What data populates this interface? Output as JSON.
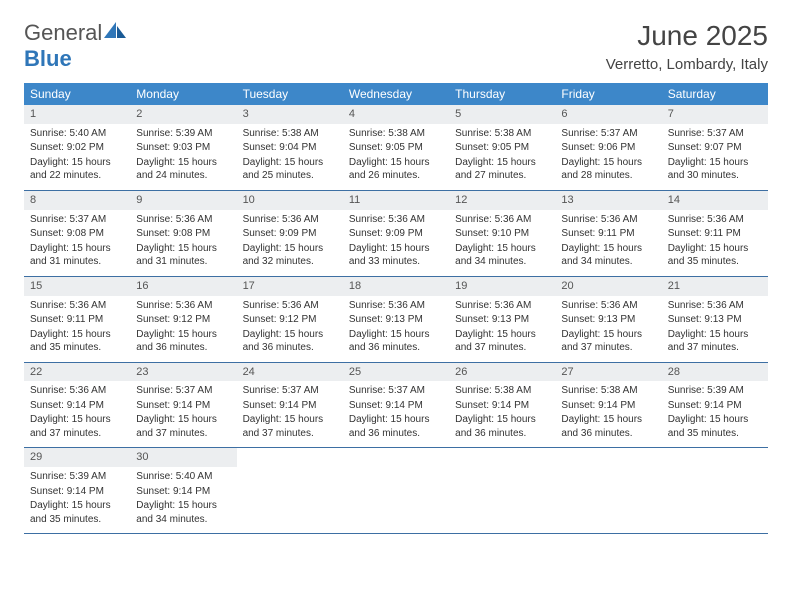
{
  "logo": {
    "word1": "General",
    "word2": "Blue"
  },
  "title": "June 2025",
  "location": "Verretto, Lombardy, Italy",
  "colors": {
    "header_bg": "#3d87c9",
    "header_text": "#ffffff",
    "daynum_bg": "#eceef0",
    "week_border": "#3d6fa3",
    "logo_blue": "#2f76b8"
  },
  "dow": [
    "Sunday",
    "Monday",
    "Tuesday",
    "Wednesday",
    "Thursday",
    "Friday",
    "Saturday"
  ],
  "labels": {
    "sunrise": "Sunrise:",
    "sunset": "Sunset:",
    "daylight": "Daylight:"
  },
  "weeks": [
    [
      {
        "n": 1,
        "sr": "5:40 AM",
        "ss": "9:02 PM",
        "dl": "15 hours and 22 minutes."
      },
      {
        "n": 2,
        "sr": "5:39 AM",
        "ss": "9:03 PM",
        "dl": "15 hours and 24 minutes."
      },
      {
        "n": 3,
        "sr": "5:38 AM",
        "ss": "9:04 PM",
        "dl": "15 hours and 25 minutes."
      },
      {
        "n": 4,
        "sr": "5:38 AM",
        "ss": "9:05 PM",
        "dl": "15 hours and 26 minutes."
      },
      {
        "n": 5,
        "sr": "5:38 AM",
        "ss": "9:05 PM",
        "dl": "15 hours and 27 minutes."
      },
      {
        "n": 6,
        "sr": "5:37 AM",
        "ss": "9:06 PM",
        "dl": "15 hours and 28 minutes."
      },
      {
        "n": 7,
        "sr": "5:37 AM",
        "ss": "9:07 PM",
        "dl": "15 hours and 30 minutes."
      }
    ],
    [
      {
        "n": 8,
        "sr": "5:37 AM",
        "ss": "9:08 PM",
        "dl": "15 hours and 31 minutes."
      },
      {
        "n": 9,
        "sr": "5:36 AM",
        "ss": "9:08 PM",
        "dl": "15 hours and 31 minutes."
      },
      {
        "n": 10,
        "sr": "5:36 AM",
        "ss": "9:09 PM",
        "dl": "15 hours and 32 minutes."
      },
      {
        "n": 11,
        "sr": "5:36 AM",
        "ss": "9:09 PM",
        "dl": "15 hours and 33 minutes."
      },
      {
        "n": 12,
        "sr": "5:36 AM",
        "ss": "9:10 PM",
        "dl": "15 hours and 34 minutes."
      },
      {
        "n": 13,
        "sr": "5:36 AM",
        "ss": "9:11 PM",
        "dl": "15 hours and 34 minutes."
      },
      {
        "n": 14,
        "sr": "5:36 AM",
        "ss": "9:11 PM",
        "dl": "15 hours and 35 minutes."
      }
    ],
    [
      {
        "n": 15,
        "sr": "5:36 AM",
        "ss": "9:11 PM",
        "dl": "15 hours and 35 minutes."
      },
      {
        "n": 16,
        "sr": "5:36 AM",
        "ss": "9:12 PM",
        "dl": "15 hours and 36 minutes."
      },
      {
        "n": 17,
        "sr": "5:36 AM",
        "ss": "9:12 PM",
        "dl": "15 hours and 36 minutes."
      },
      {
        "n": 18,
        "sr": "5:36 AM",
        "ss": "9:13 PM",
        "dl": "15 hours and 36 minutes."
      },
      {
        "n": 19,
        "sr": "5:36 AM",
        "ss": "9:13 PM",
        "dl": "15 hours and 37 minutes."
      },
      {
        "n": 20,
        "sr": "5:36 AM",
        "ss": "9:13 PM",
        "dl": "15 hours and 37 minutes."
      },
      {
        "n": 21,
        "sr": "5:36 AM",
        "ss": "9:13 PM",
        "dl": "15 hours and 37 minutes."
      }
    ],
    [
      {
        "n": 22,
        "sr": "5:36 AM",
        "ss": "9:14 PM",
        "dl": "15 hours and 37 minutes."
      },
      {
        "n": 23,
        "sr": "5:37 AM",
        "ss": "9:14 PM",
        "dl": "15 hours and 37 minutes."
      },
      {
        "n": 24,
        "sr": "5:37 AM",
        "ss": "9:14 PM",
        "dl": "15 hours and 37 minutes."
      },
      {
        "n": 25,
        "sr": "5:37 AM",
        "ss": "9:14 PM",
        "dl": "15 hours and 36 minutes."
      },
      {
        "n": 26,
        "sr": "5:38 AM",
        "ss": "9:14 PM",
        "dl": "15 hours and 36 minutes."
      },
      {
        "n": 27,
        "sr": "5:38 AM",
        "ss": "9:14 PM",
        "dl": "15 hours and 36 minutes."
      },
      {
        "n": 28,
        "sr": "5:39 AM",
        "ss": "9:14 PM",
        "dl": "15 hours and 35 minutes."
      }
    ],
    [
      {
        "n": 29,
        "sr": "5:39 AM",
        "ss": "9:14 PM",
        "dl": "15 hours and 35 minutes."
      },
      {
        "n": 30,
        "sr": "5:40 AM",
        "ss": "9:14 PM",
        "dl": "15 hours and 34 minutes."
      },
      null,
      null,
      null,
      null,
      null
    ]
  ]
}
